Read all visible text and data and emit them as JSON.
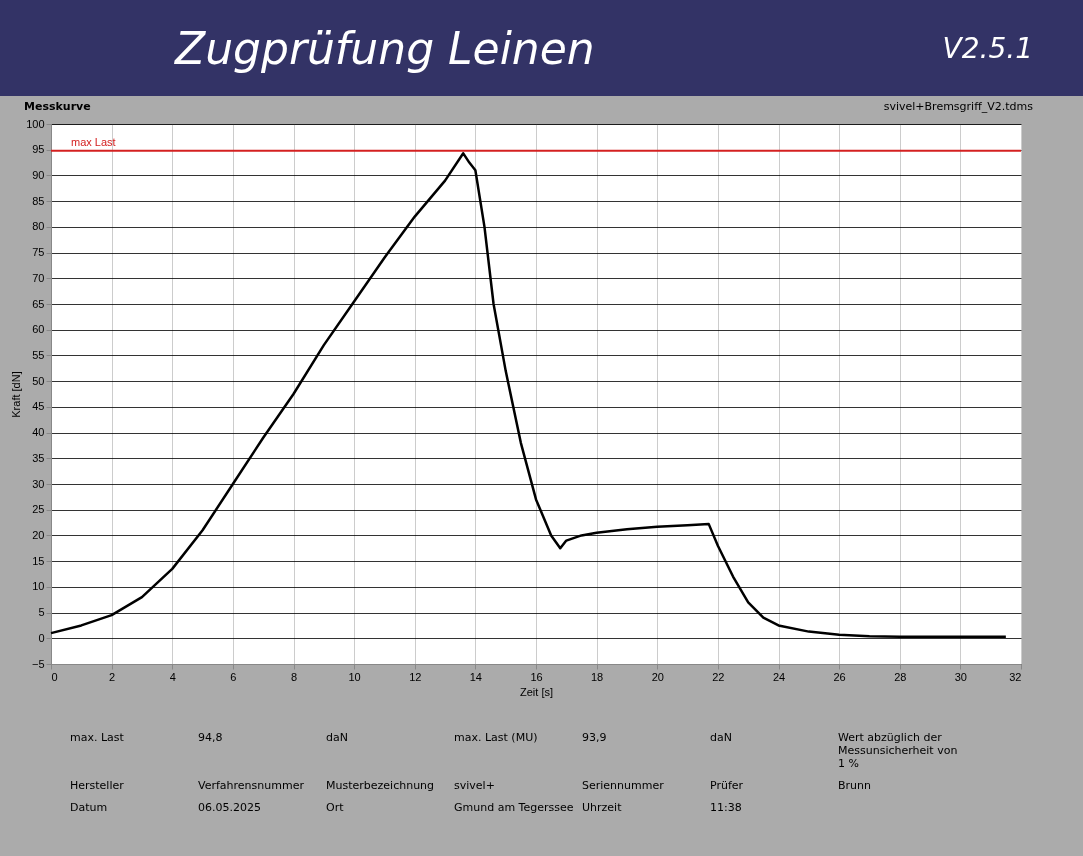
{
  "chart_data": {
    "type": "line",
    "title": "Zugprüfung Leinen",
    "subtitle": "Messkurve",
    "xlabel": "Zeit [s]",
    "ylabel": "Kraft [dN]",
    "x": [
      0,
      1,
      2,
      3,
      4,
      5,
      6,
      7,
      8,
      9,
      10,
      11,
      12,
      13,
      13.6,
      13.8,
      14,
      14.3,
      14.6,
      15,
      15.5,
      16,
      16.5,
      16.8,
      17,
      17.5,
      18,
      19,
      20,
      21,
      21.7,
      22,
      22.5,
      23,
      23.5,
      24,
      25,
      26,
      27,
      28,
      30,
      31.5
    ],
    "series": [
      {
        "color": "#000000",
        "values": [
          1,
          2.5,
          4.5,
          8,
          13.5,
          21,
          30,
          39,
          47.5,
          57,
          65.5,
          74,
          82,
          89,
          94.3,
          92.5,
          91,
          80,
          65,
          52,
          38,
          27,
          20,
          17.5,
          19,
          20,
          20.5,
          21.2,
          21.7,
          22,
          22.2,
          18,
          12,
          7,
          4,
          2.5,
          1.3,
          0.7,
          0.4,
          0.3,
          0.3,
          0.3
        ]
      }
    ],
    "xlim": [
      0,
      32
    ],
    "xticks": [
      0,
      2,
      4,
      6,
      8,
      10,
      12,
      14,
      16,
      18,
      20,
      22,
      24,
      26,
      28,
      30,
      32
    ],
    "ylim": [
      -5,
      100
    ],
    "yticks": [
      -5,
      0,
      5,
      10,
      15,
      20,
      25,
      30,
      35,
      40,
      45,
      50,
      55,
      60,
      65,
      70,
      75,
      80,
      85,
      90,
      95,
      100
    ],
    "ref_lines": [
      {
        "axis": "y",
        "value": 94.8,
        "label": "max Last",
        "color": "#d42020"
      }
    ],
    "grid": true,
    "legend": false,
    "marker": "none",
    "line_style": "solid",
    "annotations": [
      "V2.5.1",
      "svivel+Bremsgriff_V2.tdms",
      "max. Last",
      "94,8",
      "daN",
      "max. Last (MU)",
      "93,9",
      "daN",
      "Wert abzüglich der Messunsicherheit von 1 %",
      "Hersteller",
      "Verfahrensnummer",
      "Musterbezeichnung",
      "svivel+",
      "Seriennummer",
      "Prüfer",
      "Brunn",
      "Datum",
      "06.05.2025",
      "Ort",
      "Gmund am Tegerssee",
      "Uhrzeit",
      "11:38"
    ]
  }
}
